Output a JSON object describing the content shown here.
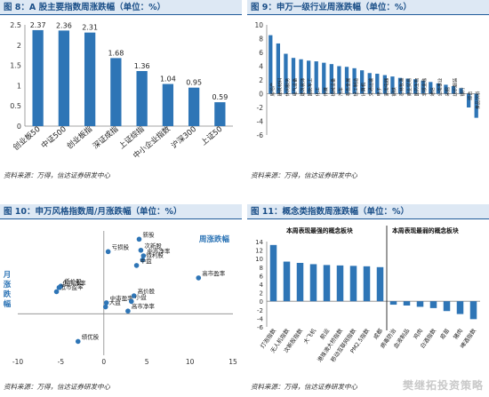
{
  "panels": [
    {
      "title": "图 8：A 股主要指数周涨跌幅（单位：%）",
      "source": "资料来源：万得，信达证券研发中心"
    },
    {
      "title": "图 9：申万一级行业周涨跌幅（单位：%）",
      "source": "资料来源：万得，信达证券研发中心"
    },
    {
      "title": "图 10：申万风格指数周/月涨跌幅（单位：%）",
      "source": "资料来源：万得，信达证券研发中心"
    },
    {
      "title": "图 11：概念类指数周涨跌幅（单位：%）",
      "source": "资料来源：万得，信达证券研发中心"
    }
  ],
  "watermark": "樊继拓投资策略",
  "colors": {
    "bar": "#2e75b6",
    "dot": "#2e75b6",
    "title_text": "#1b4f88",
    "title_bg": "#dde8f4"
  },
  "chart_data": [
    {
      "type": "bar",
      "categories": [
        "创业板50",
        "中证500",
        "创业板指",
        "深证成指",
        "上证综指",
        "中小企业指数",
        "沪深300",
        "上证50"
      ],
      "values": [
        2.37,
        2.36,
        2.31,
        1.68,
        1.36,
        1.04,
        0.95,
        0.59
      ],
      "data_labels": [
        "2.37",
        "2.36",
        "2.31",
        "1.68",
        "1.36",
        "1.04",
        "0.95",
        "0.59"
      ],
      "ylim": [
        0,
        2.5
      ],
      "yticks": [
        "0",
        "0.5",
        "1",
        "1.5",
        "2",
        "2.5"
      ],
      "grid": false
    },
    {
      "type": "bar",
      "categories": [
        "房地产",
        "建筑材料",
        "休闲服务",
        "电气设备",
        "建筑装饰",
        "国防军工",
        "化工",
        "传媒",
        "机械设备",
        "汽车",
        "有色金属",
        "轻工制造",
        "计算机",
        "交通运输",
        "电子",
        "家用电器",
        "钢铁",
        "农林牧渔",
        "商业贸易",
        "医药生物",
        "非银金融",
        "通信",
        "公用事业",
        "采掘",
        "纺织服装",
        "银行",
        "综合",
        "食品饮料"
      ],
      "values": [
        8.5,
        7.3,
        5.8,
        5.2,
        5.0,
        4.8,
        4.7,
        4.5,
        4.3,
        4.0,
        3.9,
        3.7,
        3.4,
        3.0,
        2.9,
        2.7,
        2.5,
        2.3,
        2.2,
        2.1,
        1.9,
        1.7,
        1.5,
        1.3,
        1.1,
        0.8,
        -2.0,
        -3.5
      ],
      "ylim": [
        -6,
        10
      ],
      "yticks": [
        "-6",
        "-4",
        "-2",
        "0",
        "2",
        "4",
        "6",
        "8",
        "10"
      ],
      "grid": false
    },
    {
      "type": "scatter",
      "xlabel": "周涨跌幅",
      "ylabel": "月涨跌幅",
      "xlim": [
        -10,
        15
      ],
      "ylim": [
        -3,
        6
      ],
      "xticks": [
        "-10",
        "-5",
        "0",
        "5",
        "10",
        "15"
      ],
      "points": [
        {
          "label": "低价股",
          "x": -5,
          "y": 2
        },
        {
          "label": "低市盈率",
          "x": -5.5,
          "y": 1.6
        },
        {
          "label": "低市净率",
          "x": -5.2,
          "y": 1.9
        },
        {
          "label": "绩优股",
          "x": -3,
          "y": -2
        },
        {
          "label": "亏损股",
          "x": 0.5,
          "y": 4.5
        },
        {
          "label": "中市盈率",
          "x": 0.3,
          "y": 0.8
        },
        {
          "label": "大盘",
          "x": 0.2,
          "y": 0.5
        },
        {
          "label": "新股",
          "x": 4.1,
          "y": 5.4
        },
        {
          "label": "次新股",
          "x": 4.3,
          "y": 4.6
        },
        {
          "label": "中市净率",
          "x": 4.6,
          "y": 4.2
        },
        {
          "label": "微利股",
          "x": 4.5,
          "y": 3.9
        },
        {
          "label": "中盘",
          "x": 3.8,
          "y": 3.5
        },
        {
          "label": "高市盈率",
          "x": 11,
          "y": 2.6
        },
        {
          "label": "高价股",
          "x": 3.5,
          "y": 1.3
        },
        {
          "label": "小盘",
          "x": 3.2,
          "y": 0.9
        },
        {
          "label": "高市净率",
          "x": 2.8,
          "y": 0.2
        }
      ],
      "grid": false
    },
    {
      "type": "bar",
      "left_group_label": "本周表现最强的概念板块",
      "right_group_label": "本周表现最弱的概念板块",
      "categories": [
        "灯泡指数",
        "无人机指数",
        "次新股指数",
        "大飞机",
        "航运",
        "港珠澳大桥指数",
        "移动互联网指数",
        "PM2.5指数",
        "成都",
        "病毒防治",
        "血液制品",
        "鸡肉",
        "白酒指数",
        "疫苗",
        "猪肉",
        "啤酒指数"
      ],
      "values": [
        13.2,
        9.3,
        9.0,
        8.7,
        8.5,
        8.4,
        8.3,
        8.2,
        8.0,
        -0.8,
        -1.0,
        -1.3,
        -1.6,
        -2.3,
        -3.0,
        -4.2
      ],
      "ylim": [
        -6,
        14
      ],
      "yticks": [
        "-6",
        "-4",
        "-2",
        "0",
        "2",
        "4",
        "6",
        "8",
        "10",
        "12",
        "14"
      ],
      "grid": false
    }
  ]
}
